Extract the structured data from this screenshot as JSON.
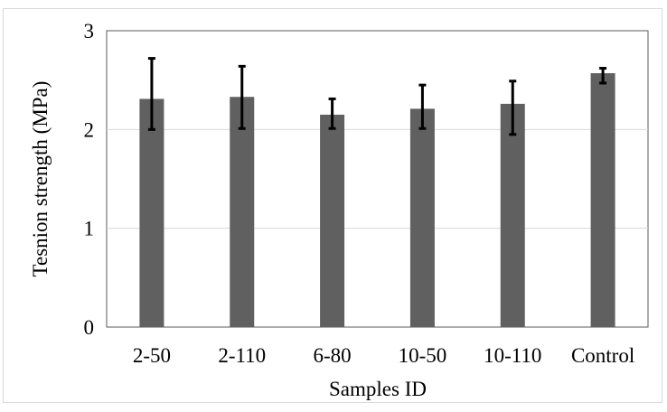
{
  "chart_data": {
    "type": "bar",
    "title": "",
    "xlabel": "Samples ID",
    "ylabel": "Tesnion strength (MPa)",
    "ylim": [
      0,
      3
    ],
    "yticks": [
      0,
      1,
      2,
      3
    ],
    "grid": true,
    "legend": "none",
    "bar_color": "#606060",
    "categories": [
      "2-50",
      "2-110",
      "6-80",
      "10-50",
      "10-110",
      "Control"
    ],
    "values": [
      2.31,
      2.33,
      2.15,
      2.21,
      2.26,
      2.57
    ],
    "error_upper": [
      2.72,
      2.64,
      2.31,
      2.45,
      2.49,
      2.62
    ],
    "error_lower": [
      2.0,
      2.01,
      2.01,
      2.01,
      1.95,
      2.47
    ]
  }
}
